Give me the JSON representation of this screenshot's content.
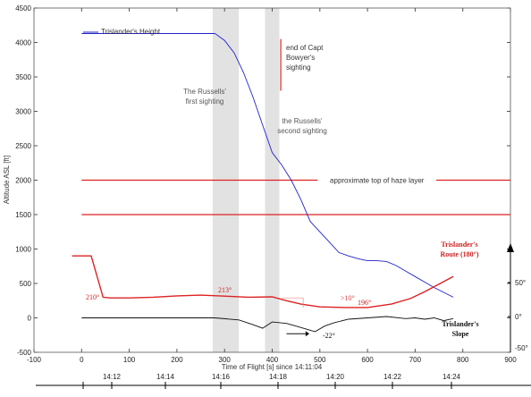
{
  "chart_data": {
    "type": "line",
    "xlabel": "Time of Flight [s] since 14:11:04",
    "ylabel": "Altitude ASL [ft]",
    "xlim": [
      -100,
      900
    ],
    "ylim": [
      -500,
      4500
    ],
    "xticks": [
      "-100",
      "0",
      "100",
      "200",
      "300",
      "400",
      "500",
      "600",
      "700",
      "800",
      "900"
    ],
    "yticks": [
      "-500",
      "0",
      "500",
      "1000",
      "1500",
      "2000",
      "2500",
      "3000",
      "3500",
      "4000",
      "4500"
    ],
    "right_ticks": [
      "50°",
      "0°",
      "-50°"
    ],
    "time_ticks": [
      "14:12",
      "14:14",
      "14:16",
      "14:18",
      "14:20",
      "14:22",
      "14:24"
    ],
    "height_series": {
      "name": "Trislander's Height",
      "color": "#2222cc",
      "x": [
        280,
        300,
        320,
        340,
        360,
        380,
        400,
        420,
        440,
        460,
        480,
        500,
        520,
        540,
        560,
        580,
        600,
        620,
        640,
        660,
        680,
        700,
        720,
        740,
        760,
        780
      ],
      "y": [
        4130,
        4030,
        3850,
        3560,
        3200,
        2800,
        2400,
        2220,
        2000,
        1720,
        1400,
        1250,
        1100,
        950,
        900,
        860,
        830,
        830,
        820,
        760,
        680,
        600,
        520,
        440,
        370,
        300
      ]
    },
    "height_flat_start": 0,
    "route_series": {
      "name": "Trislander's Route (180°)",
      "color": "#dd2222",
      "x": [
        -20,
        20,
        45,
        60,
        100,
        150,
        200,
        250,
        300,
        350,
        400,
        430,
        460,
        500,
        550,
        600,
        650,
        690,
        720,
        750,
        780
      ],
      "y": [
        900,
        900,
        300,
        290,
        290,
        300,
        320,
        330,
        315,
        300,
        305,
        250,
        200,
        160,
        150,
        150,
        200,
        280,
        380,
        490,
        600
      ]
    },
    "slope_series": {
      "name": "Trislander's Slope",
      "color": "#111111",
      "x": [
        0,
        100,
        200,
        280,
        330,
        360,
        380,
        400,
        430,
        450,
        470,
        490,
        510,
        530,
        560,
        600,
        640,
        680,
        700,
        720,
        740,
        760,
        780
      ],
      "y": [
        0,
        0,
        0,
        0,
        -30,
        -100,
        -150,
        -60,
        -80,
        -120,
        -160,
        -200,
        -120,
        -70,
        -20,
        0,
        20,
        -10,
        0,
        -20,
        0,
        -40,
        -10
      ]
    },
    "haze_lines": [
      {
        "y": 2000,
        "label": "approximate top of haze layer"
      },
      {
        "y": 1500,
        "label": ""
      }
    ],
    "sightings": [
      {
        "x0": 275,
        "x1": 330,
        "label": "The Russells' first sighting"
      },
      {
        "x0": 385,
        "x1": 415,
        "label": "the Russells' second sighting"
      }
    ],
    "bowyer_marker": {
      "x": 418,
      "y0": 3300,
      "y1": 4050,
      "label": "end of Capt Bowyer's sighting"
    },
    "annotations": {
      "heading_210": "210°",
      "heading_213": "213°",
      "heading_196": "196°",
      "slope_diff": ">10°",
      "slope_min": "-22°",
      "route_label": "Trislander's Route (180°)",
      "slope_label": "Trislander's Slope"
    }
  }
}
